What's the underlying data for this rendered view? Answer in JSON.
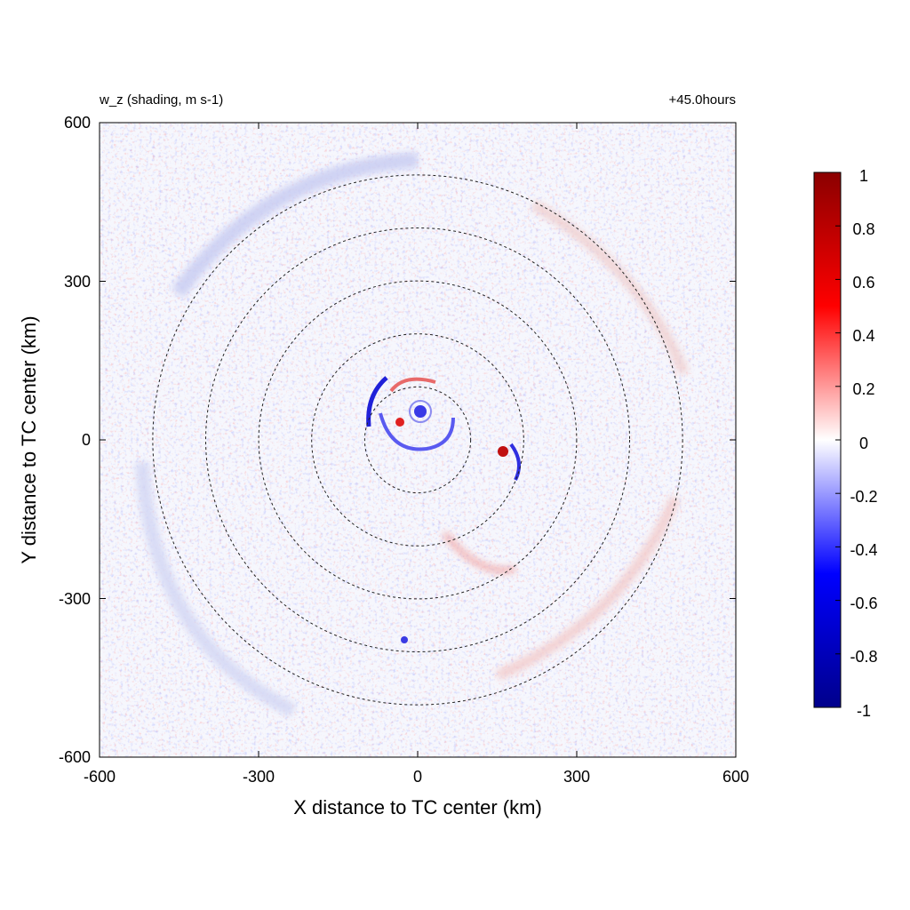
{
  "chart_data": {
    "type": "heatmap",
    "title_left": "w_z (shading, m s-1)",
    "title_right": "+45.0hours",
    "xlabel": "X distance to TC center (km)",
    "ylabel": "Y distance to TC center (km)",
    "xlim": [
      -600,
      600
    ],
    "ylim": [
      -600,
      600
    ],
    "x_ticks": [
      -600,
      -300,
      0,
      300,
      600
    ],
    "y_ticks": [
      -600,
      -300,
      0,
      300,
      600
    ],
    "x_tick_labels": [
      "-600",
      "-300",
      "0",
      "300",
      "600"
    ],
    "y_tick_labels": [
      "600",
      "300",
      "0",
      "-300",
      "-600"
    ],
    "colorbar": {
      "range": [
        -1,
        1
      ],
      "ticks": [
        1,
        0.8,
        0.6,
        0.4,
        0.2,
        0,
        -0.2,
        -0.4,
        -0.6,
        -0.8,
        -1
      ],
      "tick_labels": [
        "1",
        "0.8",
        "0.6",
        "0.4",
        "0.2",
        "0",
        "-0.2",
        "-0.4",
        "-0.6",
        "-0.8",
        "-1"
      ],
      "colors": [
        "#00008b",
        "#0000ff",
        "#ffffff",
        "#ff0000",
        "#8b0000"
      ]
    },
    "range_rings_km": [
      100,
      200,
      300,
      400,
      500
    ],
    "grid": false
  }
}
